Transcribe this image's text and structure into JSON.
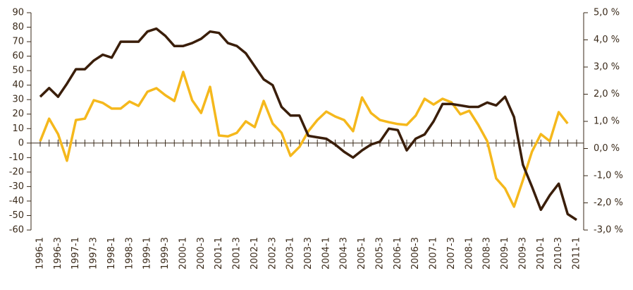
{
  "chart_data": {
    "type": "line",
    "categories": [
      "1996-1",
      null,
      "1996-3",
      null,
      "1997-1",
      null,
      "1997-3",
      null,
      "1998-1",
      null,
      "1998-3",
      null,
      "1999-1",
      null,
      "1999-3",
      null,
      "2000-1",
      null,
      "2000-3",
      null,
      "2001-1",
      null,
      "2001-3",
      null,
      "2002-1",
      null,
      "2002-3",
      null,
      "2003-1",
      null,
      "2003-3",
      null,
      "2004-1",
      null,
      "2004-3",
      null,
      "2005-1",
      null,
      "2005-3",
      null,
      "2006-1",
      null,
      "2006-3",
      null,
      "2007-1",
      null,
      "2007-3",
      null,
      "2008-1",
      null,
      "2008-3",
      null,
      "2009-1",
      null,
      "2009-3",
      null,
      "2010-1",
      null,
      "2010-3",
      null,
      "2011-1"
    ],
    "series": [
      {
        "color": "#3a1e0a",
        "values": [
          32,
          38,
          32,
          41,
          51,
          51,
          57,
          61,
          59,
          70,
          70,
          70,
          77,
          79,
          74,
          67,
          67,
          69,
          72,
          77,
          76,
          69,
          67,
          62,
          53,
          44,
          40,
          25,
          19,
          19,
          5,
          4,
          3,
          -1,
          -6,
          -10,
          -5,
          -1,
          1,
          10,
          9,
          -5,
          3,
          6,
          15,
          27,
          27,
          26,
          25,
          25,
          28,
          26,
          32,
          18,
          -15,
          -30,
          -46,
          -36,
          -28,
          -49,
          -53
        ]
      },
      {
        "color": "#f5b81c",
        "axis": "y2",
        "values": [
          0.27,
          1.1,
          0.53,
          -0.45,
          1.05,
          1.1,
          1.78,
          1.68,
          1.47,
          1.47,
          1.73,
          1.57,
          2.09,
          2.22,
          1.96,
          1.75,
          2.82,
          1.78,
          1.31,
          2.27,
          0.48,
          0.45,
          0.58,
          1.0,
          0.79,
          1.75,
          0.92,
          0.58,
          -0.27,
          0.06,
          0.64,
          1.05,
          1.36,
          1.18,
          1.05,
          0.64,
          1.88,
          1.31,
          1.05,
          0.97,
          0.9,
          0.87,
          1.21,
          1.83,
          1.62,
          1.83,
          1.7,
          1.26,
          1.39,
          0.87,
          0.27,
          -1.1,
          -1.47,
          -2.14,
          -1.16,
          -0.12,
          0.53,
          0.27,
          1.34,
          0.92,
          null
        ]
      }
    ],
    "ylim": [
      -60,
      90
    ],
    "yticks": [
      -60,
      -50,
      -40,
      -30,
      -20,
      -10,
      0,
      10,
      20,
      30,
      40,
      50,
      60,
      70,
      80,
      90
    ],
    "y2lim": [
      -3,
      5
    ],
    "y2ticks": [
      {
        "value": -3,
        "label": "-3,0 %"
      },
      {
        "value": -2,
        "label": "-2,0 %"
      },
      {
        "value": -1,
        "label": "-1,0 %"
      },
      {
        "value": 0,
        "label": "0,0 %"
      },
      {
        "value": 1,
        "label": "1,0 %"
      },
      {
        "value": 2,
        "label": "2,0 %"
      },
      {
        "value": 3,
        "label": "3,0 %"
      },
      {
        "value": 4,
        "label": "4,0 %"
      },
      {
        "value": 5,
        "label": "5,0 %"
      }
    ]
  }
}
